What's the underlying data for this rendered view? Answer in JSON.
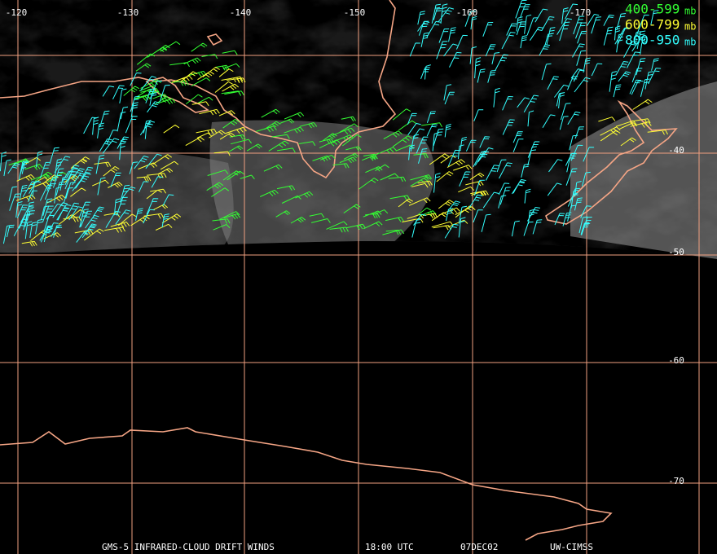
{
  "map": {
    "longitude_labels": [
      "-120",
      "-130",
      "-140",
      "-150",
      "-160",
      "-170"
    ],
    "latitude_labels": [
      "-40",
      "-50",
      "-60",
      "-70"
    ],
    "legend": [
      {
        "range": "400-599",
        "unit": "mb",
        "color": "#33ff33"
      },
      {
        "range": "600-799",
        "unit": "mb",
        "color": "#ffff33"
      },
      {
        "range": "800-950",
        "unit": "mb",
        "color": "#33ffff"
      }
    ],
    "footer": {
      "product": "GMS-5 INFRARED-CLOUD DRIFT WINDS",
      "time": "18:00 UTC",
      "date": "07DEC02",
      "source": "UW-CIMSS"
    }
  }
}
